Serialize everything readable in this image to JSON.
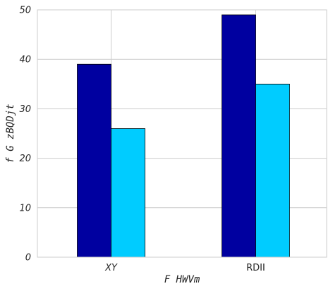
{
  "chart_data": {
    "type": "bar",
    "categories": [
      "XY",
      "RDII"
    ],
    "category_label_italic": [
      true,
      false
    ],
    "series": [
      {
        "values": [
          39,
          49
        ],
        "color": "#0000a0"
      },
      {
        "values": [
          26,
          35
        ],
        "color": "#00ccff"
      }
    ],
    "xlabel": "F HWVm",
    "ylabel": "f G zBQDjt",
    "ylim": [
      0,
      50
    ],
    "yticks": [
      0,
      10,
      20,
      30,
      40,
      50
    ],
    "grid": true,
    "legend": "none",
    "bar_edge_color": "#000000"
  }
}
